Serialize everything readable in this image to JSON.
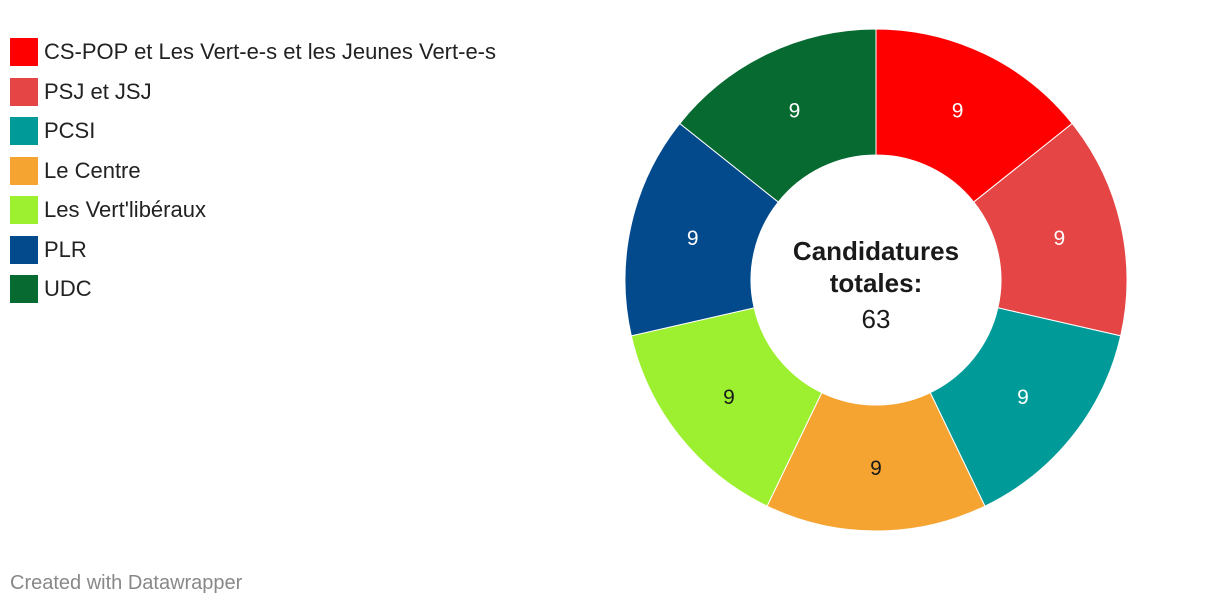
{
  "chart_data": {
    "type": "pie",
    "variant": "donut",
    "categories": [
      "CS-POP et Les Vert-e-s et les Jeunes Vert-e-s",
      "PSJ et JSJ",
      "PCSI",
      "Le Centre",
      "Les Vert'libéraux",
      "PLR",
      "UDC"
    ],
    "values": [
      9,
      9,
      9,
      9,
      9,
      9,
      9
    ],
    "colors": [
      "#fe0000",
      "#e54545",
      "#009a98",
      "#f5a432",
      "#9cf02f",
      "#034a8c",
      "#066a31"
    ],
    "label_colors": [
      "#ffffff",
      "#ffffff",
      "#ffffff",
      "#1a1a1a",
      "#1a1a1a",
      "#ffffff",
      "#ffffff"
    ],
    "center_title_lines": [
      "Candidatures",
      "totales:"
    ],
    "center_value": "63",
    "legend_position": "top-left"
  },
  "footer": {
    "credit": "Created with Datawrapper"
  }
}
